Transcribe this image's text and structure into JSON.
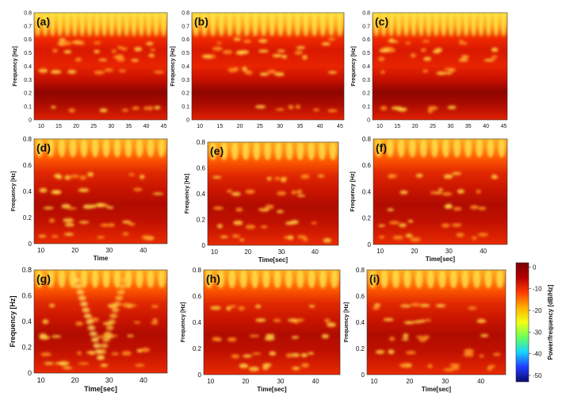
{
  "chart_data": {
    "type": "heatmap",
    "title": "",
    "colorbar": {
      "label": "Power/frequency [dB/Hz]",
      "ticks": [
        0,
        -10,
        -20,
        -30,
        -40,
        -50
      ],
      "range": [
        -53,
        2
      ],
      "colors": [
        "#0a0a70",
        "#1f3cff",
        "#17d6ff",
        "#6bff5a",
        "#f2ff14",
        "#ffb000",
        "#ff3b00",
        "#b50000",
        "#7a0000"
      ]
    },
    "panels": [
      {
        "letter": "(a)",
        "ylabel": "Frequency [Hz]",
        "xlabel": "",
        "yticks": [
          0,
          0.1,
          0.2,
          0.3,
          0.4,
          0.5,
          0.6,
          0.7,
          0.8
        ],
        "xticks": [
          10,
          15,
          20,
          25,
          30,
          35,
          40,
          45
        ],
        "xlim": [
          8,
          46
        ],
        "ylim": [
          0,
          0.8
        ]
      },
      {
        "letter": "(b)",
        "ylabel": "Frequency [Hz]",
        "xlabel": "",
        "yticks": [
          0,
          0.1,
          0.2,
          0.3,
          0.4,
          0.5,
          0.6,
          0.7,
          0.8
        ],
        "xticks": [
          10,
          15,
          20,
          25,
          30,
          35,
          40,
          45
        ],
        "xlim": [
          8,
          46
        ],
        "ylim": [
          0,
          0.8
        ]
      },
      {
        "letter": "(c)",
        "ylabel": "Frequency [Hz]",
        "xlabel": "",
        "yticks": [
          0,
          0.1,
          0.2,
          0.3,
          0.4,
          0.5,
          0.6,
          0.7,
          0.8
        ],
        "xticks": [
          10,
          15,
          20,
          25,
          30,
          35,
          40,
          45
        ],
        "xlim": [
          8,
          46
        ],
        "ylim": [
          0,
          0.8
        ]
      },
      {
        "letter": "(d)",
        "ylabel": "Frequency [Hz]",
        "xlabel": "Time",
        "yticks": [
          0,
          0.2,
          0.4,
          0.6,
          0.8
        ],
        "xticks": [
          10,
          20,
          30,
          40
        ],
        "xlim": [
          8,
          47
        ],
        "ylim": [
          0,
          0.8
        ]
      },
      {
        "letter": "(e)",
        "ylabel": "Frequency [Hz]",
        "xlabel": "Time[sec]",
        "yticks": [
          0,
          0.2,
          0.4,
          0.6,
          0.8
        ],
        "xticks": [
          10,
          20,
          30,
          40
        ],
        "xlim": [
          8,
          47
        ],
        "ylim": [
          0,
          0.8
        ]
      },
      {
        "letter": "(f)",
        "ylabel": "Frequency [Hz]",
        "xlabel": "Time[sec]",
        "yticks": [
          0,
          0.2,
          0.4,
          0.6,
          0.8
        ],
        "xticks": [
          10,
          20,
          30,
          40
        ],
        "xlim": [
          8,
          47
        ],
        "ylim": [
          0,
          0.8
        ]
      },
      {
        "letter": "(g)",
        "ylabel": "Frequency [Hz]",
        "xlabel": "Time[sec]",
        "yticks": [
          0,
          0.2,
          0.4,
          0.6,
          0.8
        ],
        "xticks": [
          10,
          20,
          30,
          40
        ],
        "xlim": [
          8,
          47
        ],
        "ylim": [
          0,
          0.8
        ]
      },
      {
        "letter": "(h)",
        "ylabel": "Frequency [Hz]",
        "xlabel": "Time[sec]",
        "yticks": [
          0,
          0.2,
          0.4,
          0.6,
          0.8
        ],
        "xticks": [
          10,
          20,
          30,
          40
        ],
        "xlim": [
          8,
          47
        ],
        "ylim": [
          0,
          0.8
        ]
      },
      {
        "letter": "(i)",
        "ylabel": "Frequency [Hz]",
        "xlabel": "Time[sec]",
        "yticks": [
          0,
          0.2,
          0.4,
          0.6,
          0.8
        ],
        "xticks": [
          10,
          20,
          30,
          40
        ],
        "xlim": [
          8,
          47
        ],
        "ylim": [
          0,
          0.8
        ]
      }
    ]
  }
}
